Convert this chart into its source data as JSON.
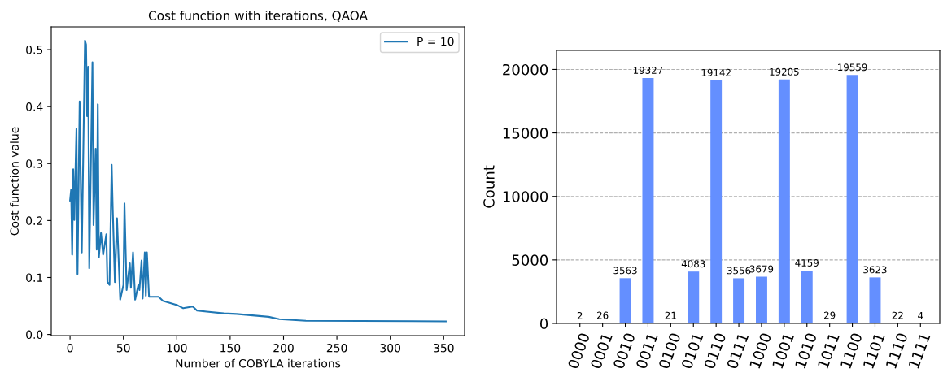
{
  "chart_data": [
    {
      "type": "line",
      "title": "Cost function with iterations, QAOA",
      "xlabel": "Number of COBYLA iterations",
      "ylabel": "Cost function value",
      "series": [
        {
          "name": "P = 10",
          "color": "#1f77b4",
          "x": [
            0,
            1,
            2,
            3,
            4,
            6,
            7,
            9,
            11,
            14,
            15,
            16,
            17,
            18,
            21,
            22,
            24,
            25,
            26,
            27,
            29,
            31,
            34,
            35,
            37,
            39,
            40,
            42,
            44,
            47,
            50,
            51,
            53,
            56,
            57,
            59,
            61,
            64,
            65,
            67,
            68,
            70,
            71,
            72,
            74,
            83,
            87,
            101,
            106,
            115,
            119,
            128,
            144,
            156,
            186,
            196,
            221,
            352
          ],
          "values": [
            0.235,
            0.254,
            0.14,
            0.29,
            0.201,
            0.361,
            0.106,
            0.409,
            0.144,
            0.516,
            0.509,
            0.383,
            0.47,
            0.116,
            0.478,
            0.192,
            0.326,
            0.149,
            0.404,
            0.135,
            0.178,
            0.14,
            0.176,
            0.092,
            0.087,
            0.298,
            0.22,
            0.092,
            0.204,
            0.061,
            0.087,
            0.23,
            0.078,
            0.125,
            0.082,
            0.144,
            0.061,
            0.087,
            0.078,
            0.13,
            0.063,
            0.144,
            0.068,
            0.144,
            0.066,
            0.066,
            0.059,
            0.051,
            0.046,
            0.049,
            0.042,
            0.04,
            0.037,
            0.036,
            0.031,
            0.027,
            0.024,
            0.023
          ]
        }
      ],
      "xlim": [
        -17.6,
        369.6
      ],
      "xticks": [
        0,
        50,
        100,
        150,
        200,
        250,
        300,
        350
      ],
      "ylim": [
        -0.002,
        0.54
      ],
      "yticks": [
        {
          "value": 0,
          "label": "0.0"
        },
        0.1,
        0.2,
        0.3,
        0.4,
        0.5
      ],
      "legend": "top right",
      "grid": false
    },
    {
      "type": "bar",
      "ylabel": "Count",
      "categories": [
        "0000",
        "0001",
        "0010",
        "0011",
        "0100",
        "0101",
        "0110",
        "0111",
        "1000",
        "1001",
        "1010",
        "1011",
        "1100",
        "1101",
        "1110",
        "1111"
      ],
      "values": [
        2,
        26,
        3563,
        19327,
        21,
        4083,
        19142,
        3556,
        3679,
        19205,
        4159,
        29,
        19559,
        3623,
        22,
        4
      ],
      "color": "#648fff",
      "data_labels": true,
      "grid": "y",
      "ylim": [
        0,
        21500
      ],
      "yticks": [
        0,
        5000,
        10000,
        15000,
        20000
      ]
    }
  ]
}
